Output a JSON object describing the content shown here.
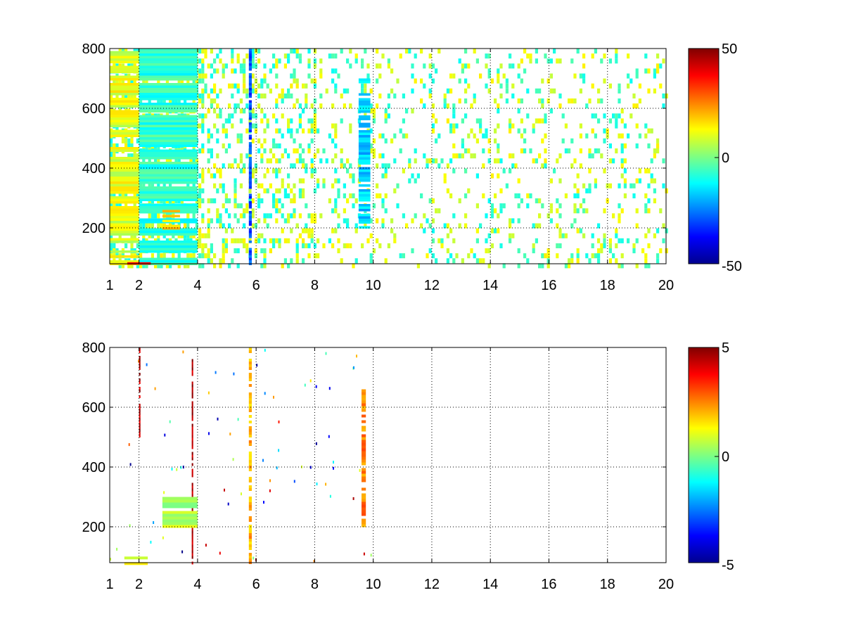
{
  "figure": {
    "background": "#ffffff",
    "colormap": "jet"
  },
  "chart_data": [
    {
      "type": "heatmap",
      "title": "",
      "xlabel": "",
      "ylabel": "",
      "xlim": [
        1,
        20
      ],
      "ylim": [
        80,
        800
      ],
      "x_ticks": [
        "1",
        "2",
        "4",
        "6",
        "8",
        "10",
        "12",
        "14",
        "16",
        "18",
        "20"
      ],
      "y_ticks": [
        "200",
        "400",
        "600",
        "800"
      ],
      "grid": true,
      "colorbar": {
        "range": [
          -50,
          50
        ],
        "ticks": [
          "50",
          "0",
          "-50"
        ]
      },
      "cell_coverage": "dense noisy columns near x=1–6, sparse scattered cells beyond x=8",
      "features": [
        {
          "x": [
            1.0,
            2.0
          ],
          "y": [
            80,
            800
          ],
          "value": 10,
          "note": "dense yellow vertical streaks"
        },
        {
          "x": [
            2.0,
            4.0
          ],
          "y": [
            80,
            800
          ],
          "value": -8,
          "note": "dense cyan vertical streaks"
        },
        {
          "x": [
            5.75,
            5.85
          ],
          "y": [
            80,
            800
          ],
          "value": -30,
          "note": "strong blue vertical line"
        },
        {
          "x": [
            9.5,
            9.9
          ],
          "y": [
            200,
            700
          ],
          "value": -18,
          "note": "cyan column with orange patches"
        },
        {
          "x": [
            1.6,
            2.4
          ],
          "y": [
            80,
            110
          ],
          "value": 40,
          "note": "red band at bottom"
        },
        {
          "x": [
            2.8,
            3.4
          ],
          "y": [
            200,
            260
          ],
          "value": 18,
          "note": "orange ridge"
        }
      ]
    },
    {
      "type": "heatmap",
      "title": "",
      "xlabel": "",
      "ylabel": "",
      "xlim": [
        1,
        20
      ],
      "ylim": [
        80,
        800
      ],
      "x_ticks": [
        "1",
        "2",
        "4",
        "6",
        "8",
        "10",
        "12",
        "14",
        "16",
        "18",
        "20"
      ],
      "y_ticks": [
        "200",
        "400",
        "600",
        "800"
      ],
      "grid": true,
      "colorbar": {
        "range": [
          -5,
          5
        ],
        "ticks": [
          "5",
          "0",
          "-5"
        ]
      },
      "cell_coverage": "very sparse, mostly empty beyond x=10",
      "features": [
        {
          "x": [
            5.75,
            5.85
          ],
          "y": [
            80,
            800
          ],
          "value": 2,
          "note": "multicolor vertical line"
        },
        {
          "x": [
            9.6,
            9.75
          ],
          "y": [
            200,
            660
          ],
          "value": 2.5,
          "note": "orange / cyan column"
        },
        {
          "x": [
            3.8,
            3.85
          ],
          "y": [
            80,
            780
          ],
          "value": 4.5,
          "note": "thin red vertical line"
        },
        {
          "x": [
            2.0,
            2.05
          ],
          "y": [
            500,
            800
          ],
          "value": 4.5,
          "note": "thin dark red line"
        },
        {
          "x": [
            2.8,
            4.0
          ],
          "y": [
            200,
            300
          ],
          "value": 0.5,
          "note": "faint green trail"
        },
        {
          "x": [
            1.5,
            2.3
          ],
          "y": [
            80,
            110
          ],
          "value": 1,
          "note": "green band at bottom"
        }
      ]
    }
  ]
}
